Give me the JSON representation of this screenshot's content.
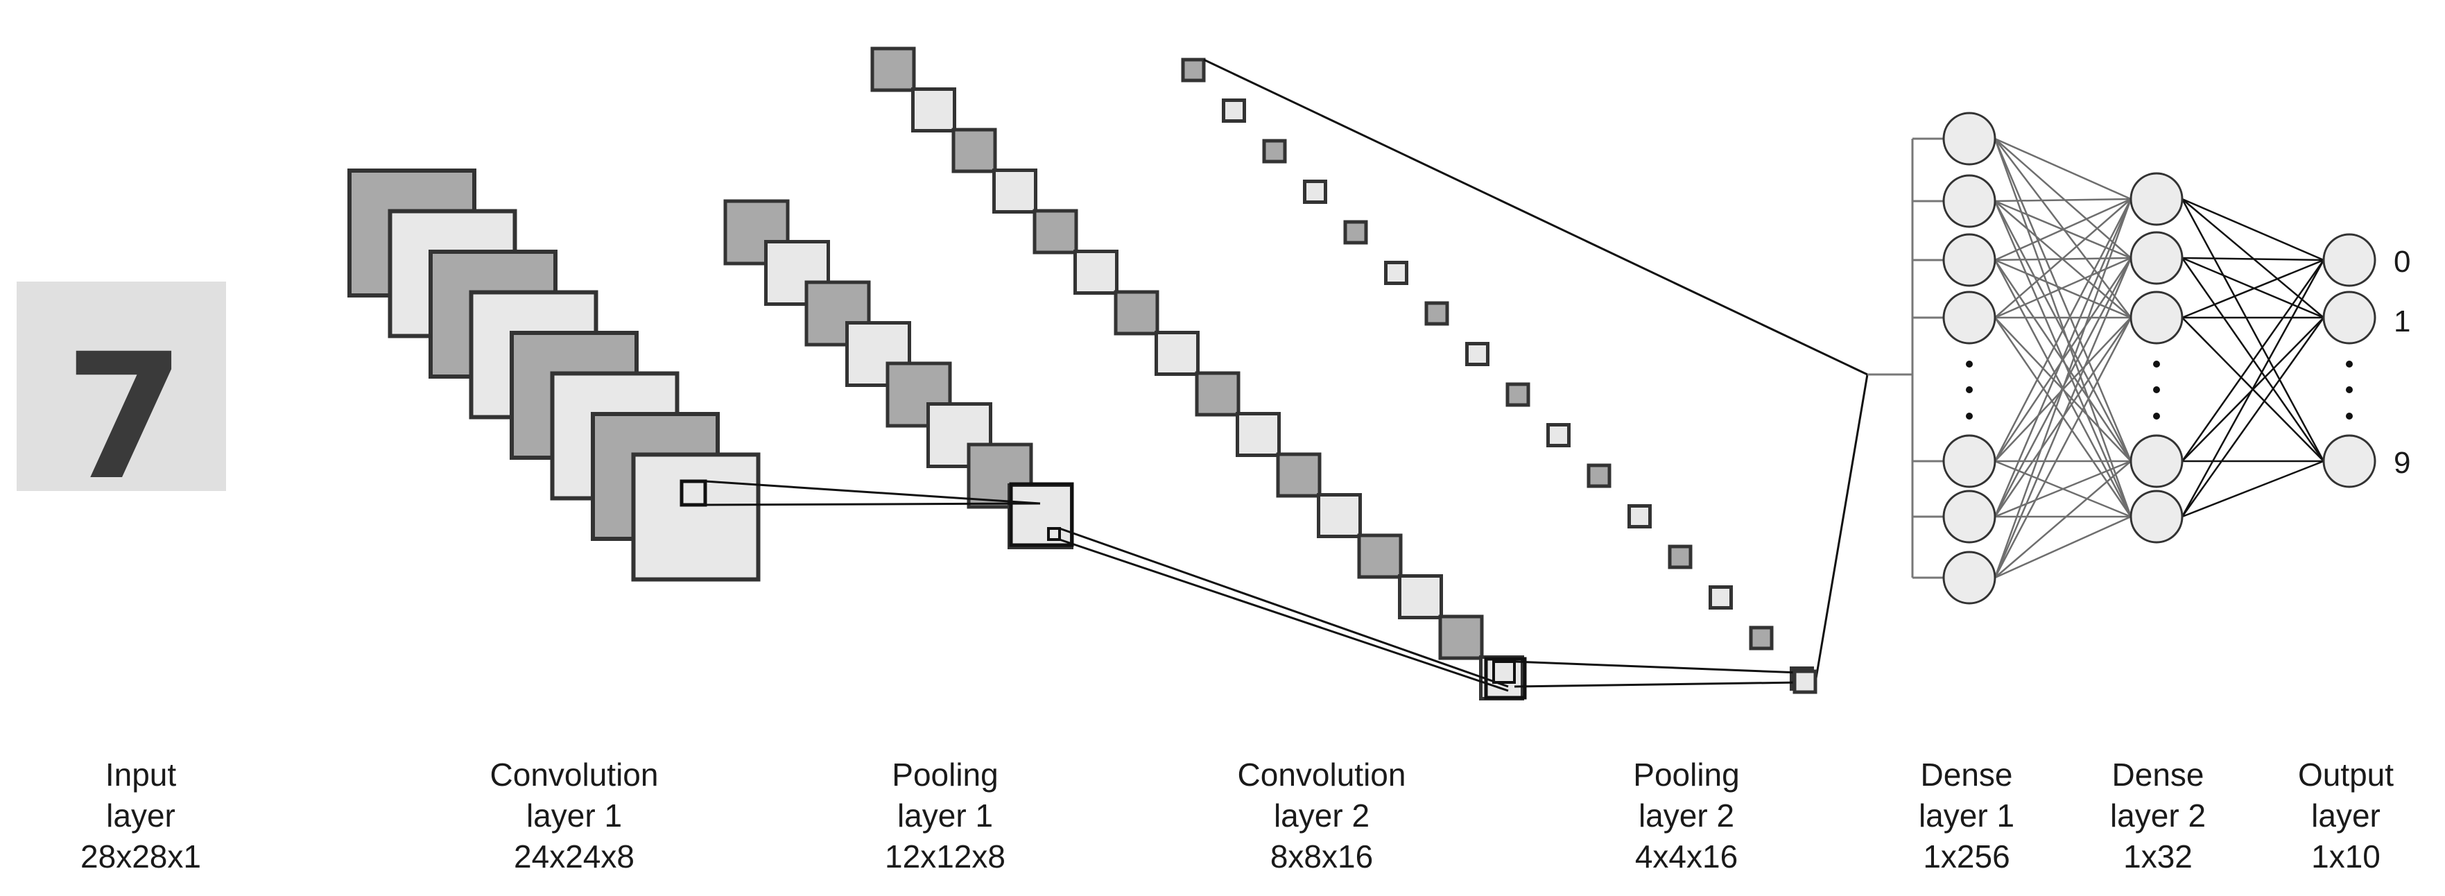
{
  "input_image": {
    "digit": "7"
  },
  "layers": [
    {
      "name": "Input",
      "line2": "layer",
      "shape": "28x28x1"
    },
    {
      "name": "Convolution",
      "line2": "layer 1",
      "shape": "24x24x8"
    },
    {
      "name": "Pooling",
      "line2": "layer 1",
      "shape": "12x12x8"
    },
    {
      "name": "Convolution",
      "line2": "layer 2",
      "shape": "8x8x16"
    },
    {
      "name": "Pooling",
      "line2": "layer 2",
      "shape": "4x4x16"
    },
    {
      "name": "Dense",
      "line2": "layer 1",
      "shape": "1x256"
    },
    {
      "name": "Dense",
      "line2": "layer 2",
      "shape": "1x32"
    },
    {
      "name": "Output",
      "line2": "layer",
      "shape": "1x10"
    }
  ],
  "output_labels": [
    "0",
    "1",
    "9"
  ],
  "colors": {
    "dark_map": "#a9a9a9",
    "light_map": "#e8e8e8",
    "neuron": "#ececec",
    "input_bg": "#e0e0e0"
  }
}
